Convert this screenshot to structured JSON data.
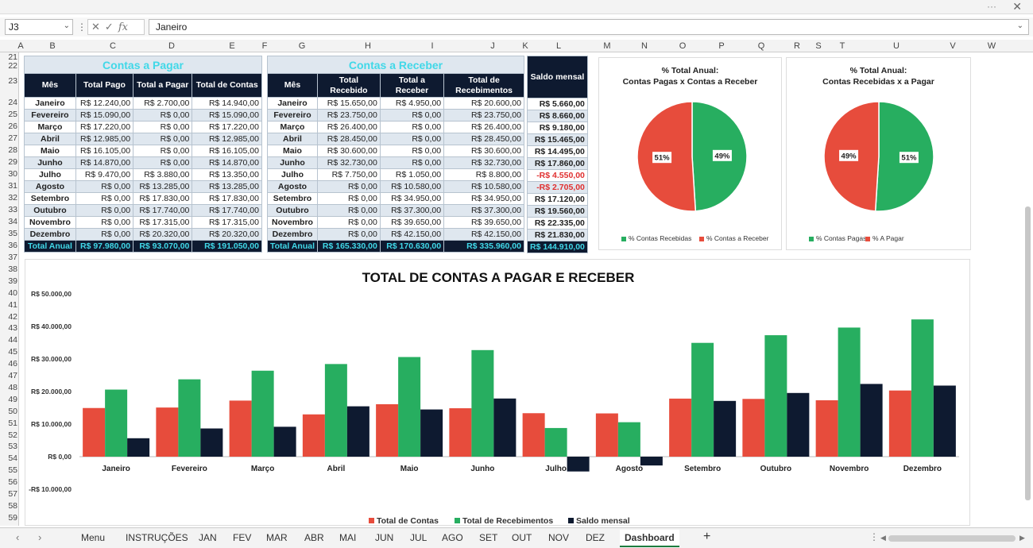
{
  "namebox": "J3",
  "formula": "Janeiro",
  "fx": "fx",
  "columns": [
    "A",
    "B",
    "C",
    "D",
    "E",
    "F",
    "G",
    "H",
    "I",
    "J",
    "K",
    "L",
    "M",
    "N",
    "O",
    "P",
    "Q",
    "R",
    "S",
    "T",
    "U",
    "V",
    "W"
  ],
  "rows": [
    "21",
    "22",
    "23",
    "24",
    "25",
    "26",
    "27",
    "28",
    "29",
    "30",
    "31",
    "32",
    "33",
    "34",
    "35",
    "36",
    "37",
    "38",
    "39",
    "40",
    "41",
    "42",
    "43",
    "44",
    "45",
    "46",
    "47",
    "48",
    "49",
    "50",
    "51",
    "52",
    "53",
    "54",
    "55",
    "56",
    "57",
    "58",
    "59"
  ],
  "pagar": {
    "title": "Contas a Pagar",
    "headers": [
      "Mês",
      "Total Pago",
      "Total a Pagar",
      "Total de Contas"
    ],
    "rows": [
      [
        "Janeiro",
        "R$ 12.240,00",
        "R$ 2.700,00",
        "R$ 14.940,00"
      ],
      [
        "Fevereiro",
        "R$ 15.090,00",
        "R$ 0,00",
        "R$ 15.090,00"
      ],
      [
        "Março",
        "R$ 17.220,00",
        "R$ 0,00",
        "R$ 17.220,00"
      ],
      [
        "Abril",
        "R$ 12.985,00",
        "R$ 0,00",
        "R$ 12.985,00"
      ],
      [
        "Maio",
        "R$ 16.105,00",
        "R$ 0,00",
        "R$ 16.105,00"
      ],
      [
        "Junho",
        "R$ 14.870,00",
        "R$ 0,00",
        "R$ 14.870,00"
      ],
      [
        "Julho",
        "R$ 9.470,00",
        "R$ 3.880,00",
        "R$ 13.350,00"
      ],
      [
        "Agosto",
        "R$ 0,00",
        "R$ 13.285,00",
        "R$ 13.285,00"
      ],
      [
        "Setembro",
        "R$ 0,00",
        "R$ 17.830,00",
        "R$ 17.830,00"
      ],
      [
        "Outubro",
        "R$ 0,00",
        "R$ 17.740,00",
        "R$ 17.740,00"
      ],
      [
        "Novembro",
        "R$ 0,00",
        "R$ 17.315,00",
        "R$ 17.315,00"
      ],
      [
        "Dezembro",
        "R$ 0,00",
        "R$ 20.320,00",
        "R$ 20.320,00"
      ]
    ],
    "total": [
      "Total Anual",
      "R$ 97.980,00",
      "R$ 93.070,00",
      "R$ 191.050,00"
    ]
  },
  "receber": {
    "title": "Contas a Receber",
    "headers": [
      "Mês",
      "Total Recebido",
      "Total a Receber",
      "Total de Recebimentos"
    ],
    "rows": [
      [
        "Janeiro",
        "R$ 15.650,00",
        "R$ 4.950,00",
        "R$ 20.600,00"
      ],
      [
        "Fevereiro",
        "R$ 23.750,00",
        "R$ 0,00",
        "R$ 23.750,00"
      ],
      [
        "Março",
        "R$ 26.400,00",
        "R$ 0,00",
        "R$ 26.400,00"
      ],
      [
        "Abril",
        "R$ 28.450,00",
        "R$ 0,00",
        "R$ 28.450,00"
      ],
      [
        "Maio",
        "R$ 30.600,00",
        "R$ 0,00",
        "R$ 30.600,00"
      ],
      [
        "Junho",
        "R$ 32.730,00",
        "R$ 0,00",
        "R$ 32.730,00"
      ],
      [
        "Julho",
        "R$ 7.750,00",
        "R$ 1.050,00",
        "R$ 8.800,00"
      ],
      [
        "Agosto",
        "R$ 0,00",
        "R$ 10.580,00",
        "R$ 10.580,00"
      ],
      [
        "Setembro",
        "R$ 0,00",
        "R$ 34.950,00",
        "R$ 34.950,00"
      ],
      [
        "Outubro",
        "R$ 0,00",
        "R$ 37.300,00",
        "R$ 37.300,00"
      ],
      [
        "Novembro",
        "R$ 0,00",
        "R$ 39.650,00",
        "R$ 39.650,00"
      ],
      [
        "Dezembro",
        "R$ 0,00",
        "R$ 42.150,00",
        "R$ 42.150,00"
      ]
    ],
    "total": [
      "Total Anual",
      "R$ 165.330,00",
      "R$ 170.630,00",
      "R$ 335.960,00"
    ]
  },
  "saldo": {
    "header": "Saldo mensal",
    "rows": [
      "R$ 5.660,00",
      "R$ 8.660,00",
      "R$ 9.180,00",
      "R$ 15.465,00",
      "R$ 14.495,00",
      "R$ 17.860,00",
      "-R$ 4.550,00",
      "-R$ 2.705,00",
      "R$ 17.120,00",
      "R$ 19.560,00",
      "R$ 22.335,00",
      "R$ 21.830,00"
    ],
    "total": "R$ 144.910,00"
  },
  "colors": {
    "red": "#e74c3c",
    "green": "#27ae60",
    "navy": "#0e1a30",
    "cyan": "#41d8e8"
  },
  "chart_data": [
    {
      "type": "pie",
      "title": "% Total Anual:\nContas Pagas x Contas a Receber",
      "labels": [
        "% Contas Recebidas",
        "% Contas a Receber"
      ],
      "values": [
        49,
        51
      ],
      "data_labels": [
        "49%",
        "51%"
      ],
      "legend": "bottom"
    },
    {
      "type": "pie",
      "title": "% Total Anual:\nContas Recebidas x a Pagar",
      "labels": [
        "% Contas Pagas",
        "% A Pagar"
      ],
      "values": [
        51,
        49
      ],
      "data_labels": [
        "51%",
        "49%"
      ],
      "legend": "bottom"
    },
    {
      "type": "bar",
      "title": "TOTAL DE CONTAS A PAGAR E RECEBER",
      "categories": [
        "Janeiro",
        "Fevereiro",
        "Março",
        "Abril",
        "Maio",
        "Junho",
        "Julho",
        "Agosto",
        "Setembro",
        "Outubro",
        "Novembro",
        "Dezembro"
      ],
      "series": [
        {
          "name": "Total de Contas",
          "values": [
            14940,
            15090,
            17220,
            12985,
            16105,
            14870,
            13350,
            13285,
            17830,
            17740,
            17315,
            20320
          ]
        },
        {
          "name": "Total de Recebimentos",
          "values": [
            20600,
            23750,
            26400,
            28450,
            30600,
            32730,
            8800,
            10580,
            34950,
            37300,
            39650,
            42150
          ]
        },
        {
          "name": "Saldo mensal",
          "values": [
            5660,
            8660,
            9180,
            15465,
            14495,
            17860,
            -4550,
            -2705,
            17120,
            19560,
            22335,
            21830
          ]
        }
      ],
      "ylim": [
        -10000,
        50000
      ],
      "yticks": [
        "R$ 50.000,00",
        "R$ 40.000,00",
        "R$ 30.000,00",
        "R$ 20.000,00",
        "R$ 10.000,00",
        "R$ 0,00",
        "-R$ 10.000,00"
      ],
      "legend": "bottom",
      "grid": false
    }
  ],
  "tabs": [
    "Menu",
    "INSTRUÇÕES",
    "JAN",
    "FEV",
    "MAR",
    "ABR",
    "MAI",
    "JUN",
    "JUL",
    "AGO",
    "SET",
    "OUT",
    "NOV",
    "DEZ",
    "Dashboard"
  ],
  "add_tab": "+",
  "window": {
    "more": "···",
    "close": "✕"
  }
}
